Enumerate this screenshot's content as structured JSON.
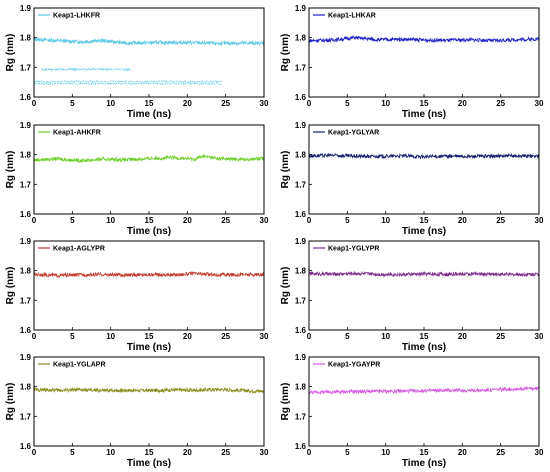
{
  "chart_data": [
    {
      "type": "line",
      "series": [
        {
          "name": "Keap1-LHKFR",
          "color": "#5ac8e6",
          "pattern": [
            [
              0,
              1.795
            ],
            [
              3,
              1.79
            ],
            [
              6,
              1.786
            ],
            [
              9,
              1.79
            ],
            [
              12,
              1.782
            ],
            [
              15,
              1.783
            ],
            [
              18,
              1.784
            ],
            [
              21,
              1.783
            ],
            [
              24,
              1.78
            ],
            [
              27,
              1.782
            ],
            [
              30,
              1.781
            ]
          ],
          "fragments": [
            [
              [
                1,
                12.5
              ],
              1.693,
              "#5ac8e6"
            ],
            [
              [
                0,
                24.5
              ],
              1.652,
              "#5ac8e6"
            ],
            [
              [
                0,
                24.5
              ],
              1.645,
              "#5ac8e6"
            ]
          ]
        }
      ],
      "xlabel": "Time (ns)",
      "ylabel": "Rg (nm)",
      "xlim": [
        0,
        30
      ],
      "ylim": [
        1.6,
        1.9
      ],
      "xticks": [
        "0",
        "5",
        "10",
        "15",
        "20",
        "25",
        "30"
      ],
      "yticks": [
        "1.6",
        "1.7",
        "1.8",
        "1.9"
      ],
      "legend": "top-left"
    },
    {
      "type": "line",
      "series": [
        {
          "name": "Keap1-LHKAR",
          "color": "#1f1fc8",
          "pattern": [
            [
              0,
              1.79
            ],
            [
              3,
              1.792
            ],
            [
              6,
              1.8
            ],
            [
              9,
              1.793
            ],
            [
              12,
              1.795
            ],
            [
              15,
              1.792
            ],
            [
              18,
              1.791
            ],
            [
              21,
              1.793
            ],
            [
              24,
              1.79
            ],
            [
              27,
              1.793
            ],
            [
              30,
              1.796
            ]
          ]
        }
      ],
      "xlabel": "Time (ns)",
      "ylabel": "Rg (nm)",
      "xlim": [
        0,
        30
      ],
      "ylim": [
        1.6,
        1.9
      ],
      "xticks": [
        "0",
        "5",
        "10",
        "15",
        "20",
        "25",
        "30"
      ],
      "yticks": [
        "1.6",
        "1.7",
        "1.8",
        "1.9"
      ],
      "legend": "top-left"
    },
    {
      "type": "line",
      "series": [
        {
          "name": "Keap1-AHKFR",
          "color": "#6fce2a",
          "pattern": [
            [
              0,
              1.782
            ],
            [
              3,
              1.786
            ],
            [
              6,
              1.78
            ],
            [
              9,
              1.785
            ],
            [
              12,
              1.783
            ],
            [
              15,
              1.787
            ],
            [
              18,
              1.79
            ],
            [
              21,
              1.785
            ],
            [
              22,
              1.795
            ],
            [
              24,
              1.787
            ],
            [
              27,
              1.784
            ],
            [
              30,
              1.787
            ]
          ]
        }
      ],
      "xlabel": "Time (ns)",
      "ylabel": "Rg (nm)",
      "xlim": [
        0,
        30
      ],
      "ylim": [
        1.6,
        1.9
      ],
      "xticks": [
        "0",
        "5",
        "10",
        "15",
        "20",
        "25",
        "30"
      ],
      "yticks": [
        "1.6",
        "1.7",
        "1.8",
        "1.9"
      ],
      "legend": "top-left"
    },
    {
      "type": "line",
      "series": [
        {
          "name": "Keap1-YGLYAR",
          "color": "#141e6e",
          "pattern": [
            [
              0,
              1.796
            ],
            [
              3,
              1.798
            ],
            [
              6,
              1.795
            ],
            [
              9,
              1.794
            ],
            [
              12,
              1.796
            ],
            [
              15,
              1.793
            ],
            [
              18,
              1.795
            ],
            [
              21,
              1.794
            ],
            [
              24,
              1.795
            ],
            [
              27,
              1.796
            ],
            [
              30,
              1.795
            ]
          ]
        }
      ],
      "xlabel": "Time (ns)",
      "ylabel": "Rg (nm)",
      "xlim": [
        0,
        30
      ],
      "ylim": [
        1.6,
        1.9
      ],
      "xticks": [
        "0",
        "5",
        "10",
        "15",
        "20",
        "25",
        "30"
      ],
      "yticks": [
        "1.6",
        "1.7",
        "1.8",
        "1.9"
      ],
      "legend": "top-left"
    },
    {
      "type": "line",
      "series": [
        {
          "name": "Keap1-AGLYPR",
          "color": "#c0392b",
          "pattern": [
            [
              0,
              1.788
            ],
            [
              3,
              1.784
            ],
            [
              6,
              1.786
            ],
            [
              9,
              1.787
            ],
            [
              12,
              1.785
            ],
            [
              15,
              1.787
            ],
            [
              18,
              1.786
            ],
            [
              21,
              1.79
            ],
            [
              24,
              1.786
            ],
            [
              27,
              1.787
            ],
            [
              30,
              1.786
            ]
          ]
        }
      ],
      "xlabel": "Time (ns)",
      "ylabel": "Rg (nm)",
      "xlim": [
        0,
        30
      ],
      "ylim": [
        1.6,
        1.9
      ],
      "xticks": [
        "0",
        "5",
        "10",
        "15",
        "20",
        "25",
        "30"
      ],
      "yticks": [
        "1.6",
        "1.7",
        "1.8",
        "1.9"
      ],
      "legend": "top-left"
    },
    {
      "type": "line",
      "series": [
        {
          "name": "Keap1-YGLYPR",
          "color": "#7b2c8c",
          "pattern": [
            [
              0,
              1.79
            ],
            [
              3,
              1.788
            ],
            [
              6,
              1.791
            ],
            [
              9,
              1.788
            ],
            [
              12,
              1.787
            ],
            [
              15,
              1.789
            ],
            [
              18,
              1.788
            ],
            [
              21,
              1.789
            ],
            [
              24,
              1.788
            ],
            [
              27,
              1.787
            ],
            [
              30,
              1.788
            ]
          ]
        }
      ],
      "xlabel": "Time (ns)",
      "ylabel": "Rg (nm)",
      "xlim": [
        0,
        30
      ],
      "ylim": [
        1.6,
        1.9
      ],
      "xticks": [
        "0",
        "5",
        "10",
        "15",
        "20",
        "25",
        "30"
      ],
      "yticks": [
        "1.6",
        "1.7",
        "1.8",
        "1.9"
      ],
      "legend": "top-left"
    },
    {
      "type": "line",
      "series": [
        {
          "name": "Keap1-YGLAPR",
          "color": "#8b8b1a",
          "pattern": [
            [
              0,
              1.79
            ],
            [
              3,
              1.788
            ],
            [
              6,
              1.789
            ],
            [
              9,
              1.787
            ],
            [
              12,
              1.788
            ],
            [
              15,
              1.787
            ],
            [
              18,
              1.789
            ],
            [
              21,
              1.788
            ],
            [
              24,
              1.791
            ],
            [
              27,
              1.787
            ],
            [
              30,
              1.785
            ]
          ]
        }
      ],
      "xlabel": "Time (ns)",
      "ylabel": "Rg (nm)",
      "xlim": [
        0,
        30
      ],
      "ylim": [
        1.6,
        1.9
      ],
      "xticks": [
        "0",
        "5",
        "10",
        "15",
        "20",
        "25",
        "30"
      ],
      "yticks": [
        "1.6",
        "1.7",
        "1.8",
        "1.9"
      ],
      "legend": "top-left"
    },
    {
      "type": "line",
      "series": [
        {
          "name": "Keap1-YGAYPR",
          "color": "#d55be0",
          "pattern": [
            [
              0,
              1.781
            ],
            [
              3,
              1.782
            ],
            [
              6,
              1.784
            ],
            [
              9,
              1.784
            ],
            [
              12,
              1.785
            ],
            [
              15,
              1.786
            ],
            [
              18,
              1.788
            ],
            [
              21,
              1.787
            ],
            [
              24,
              1.789
            ],
            [
              27,
              1.793
            ],
            [
              30,
              1.794
            ]
          ]
        }
      ],
      "xlabel": "Time (ns)",
      "ylabel": "Rg (nm)",
      "xlim": [
        0,
        30
      ],
      "ylim": [
        1.6,
        1.9
      ],
      "xticks": [
        "0",
        "5",
        "10",
        "15",
        "20",
        "25",
        "30"
      ],
      "yticks": [
        "1.6",
        "1.7",
        "1.8",
        "1.9"
      ],
      "legend": "top-left"
    }
  ]
}
